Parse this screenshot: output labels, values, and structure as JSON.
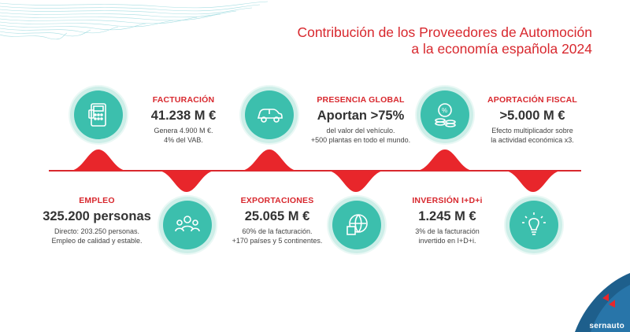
{
  "title": {
    "line1": "Contribución de los Proveedores de Automoción",
    "line2": "a la economía española 2024"
  },
  "colors": {
    "accent": "#d8282e",
    "teal": "#3cbfad",
    "brand_blue": "#1e5f8c"
  },
  "items": [
    {
      "label": "FACTURACIÓN",
      "value": "41.238 M €",
      "desc1": "Genera 4.900 M €.",
      "desc2": "4% del VAB.",
      "icon": "pos-terminal-icon"
    },
    {
      "label": "PRESENCIA GLOBAL",
      "value": "Aportan >75%",
      "desc1": "del valor del vehículo.",
      "desc2": "+500 plantas en todo el mundo.",
      "icon": "car-icon"
    },
    {
      "label": "APORTACIÓN FISCAL",
      "value": ">5.000 M €",
      "desc1": "Efecto multiplicador sobre",
      "desc2": "la actividad económica x3.",
      "icon": "coins-percent-icon"
    },
    {
      "label": "EMPLEO",
      "value": "325.200 personas",
      "desc1": "Directo: 203.250 personas.",
      "desc2": "Empleo de calidad y estable.",
      "icon": "people-icon"
    },
    {
      "label": "EXPORTACIONES",
      "value": "25.065 M €",
      "desc1": "60% de la facturación.",
      "desc2": "+170 países y 5 continentes.",
      "icon": "globe-box-icon"
    },
    {
      "label": "INVERSIÓN I+D+i",
      "value": "1.245 M €",
      "desc1": "3% de la facturación",
      "desc2": "invertido en I+D+i.",
      "icon": "lightbulb-icon"
    }
  ],
  "brand": {
    "name": "sernauto"
  }
}
